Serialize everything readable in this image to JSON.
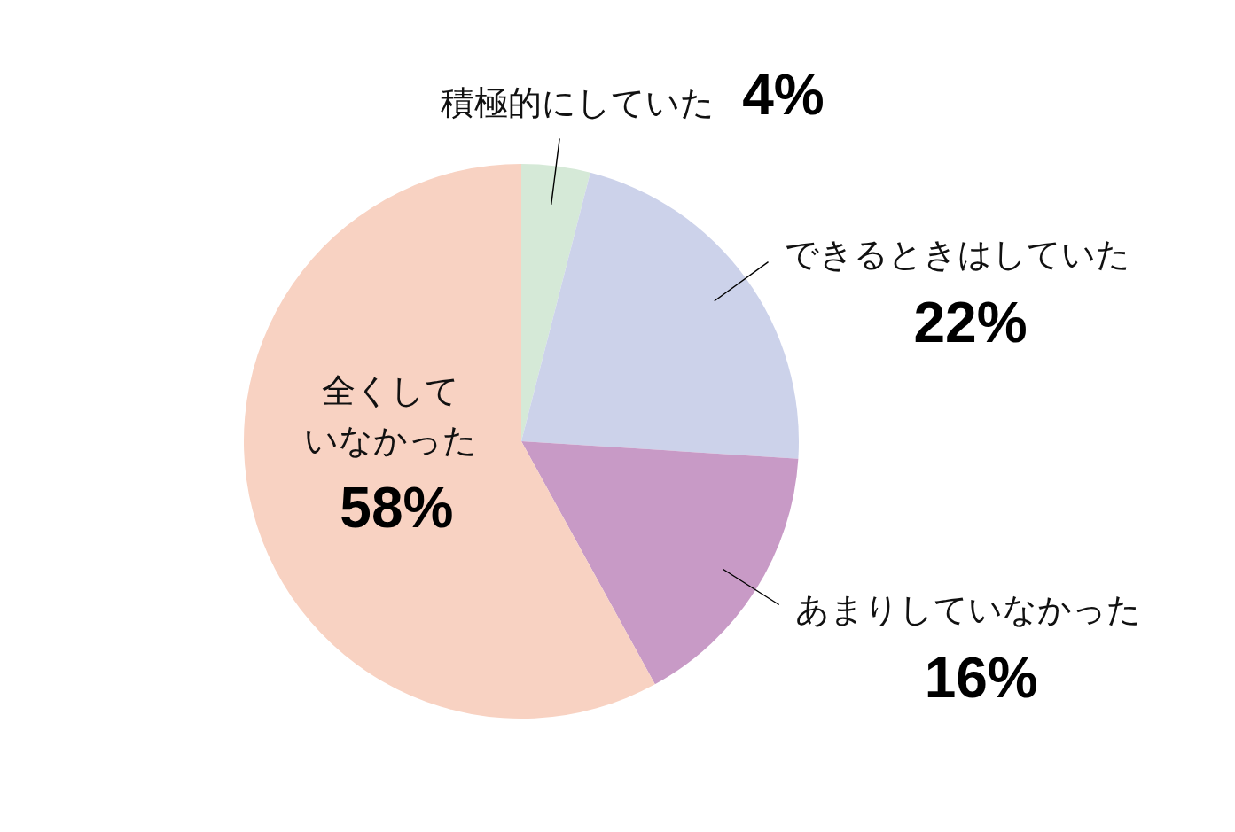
{
  "chart_data": {
    "type": "pie",
    "categories": [
      "積極的にしていた",
      "できるときはしていた",
      "あまりしていなかった",
      "全くしていなかった"
    ],
    "values": [
      4,
      22,
      16,
      58
    ],
    "colors": [
      "#d5e9d7",
      "#ccd2ea",
      "#c89ac6",
      "#f8d2c2"
    ],
    "value_labels": [
      "4%",
      "22%",
      "16%",
      "58%"
    ]
  }
}
